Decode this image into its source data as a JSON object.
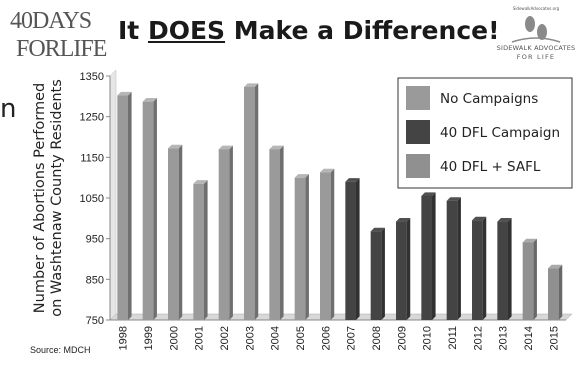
{
  "header": {
    "logo_left_line1": "40DAYS",
    "logo_left_line2": "FORLIFE",
    "title_before": "It ",
    "title_emphasis": "DOES",
    "title_after": " Make a Difference!",
    "logo_right_url": "SidewalkAdvocates.org",
    "logo_right_line1": "SIDEWALK ADVOCATES",
    "logo_right_line2": "FOR LIFE"
  },
  "partial_text": "n",
  "source_note": "Source: MDCH",
  "colors": {
    "no_campaigns": "#9a9a9a",
    "dfl_campaign": "#444444",
    "dfl_safl": "#909090"
  },
  "chart_data": {
    "type": "bar",
    "title": "",
    "xlabel": "",
    "ylabel_line1": "Number of Abortions Performed",
    "ylabel_line2": "on Washtenaw County Residents",
    "ylim": [
      750,
      1350
    ],
    "yticks": [
      750,
      850,
      950,
      1050,
      1150,
      1250,
      1350
    ],
    "grid": false,
    "legend_position": "top-right",
    "categories": [
      "1998",
      "1999",
      "2000",
      "2001",
      "2002",
      "2003",
      "2004",
      "2005",
      "2006",
      "2007",
      "2008",
      "2009",
      "2010",
      "2011",
      "2012",
      "2013",
      "2014",
      "2015"
    ],
    "values": [
      1302,
      1287,
      1172,
      1085,
      1170,
      1323,
      1170,
      1100,
      1113,
      1090,
      968,
      992,
      1055,
      1043,
      995,
      992,
      941,
      877
    ],
    "groups": [
      "none",
      "none",
      "none",
      "none",
      "none",
      "none",
      "none",
      "none",
      "none",
      "dfl",
      "dfl",
      "dfl",
      "dfl",
      "dfl",
      "dfl",
      "dfl",
      "safl",
      "safl"
    ],
    "legend": [
      {
        "key": "none",
        "label": "No Campaigns"
      },
      {
        "key": "dfl",
        "label": "40 DFL Campaign"
      },
      {
        "key": "safl",
        "label": "40 DFL + SAFL"
      }
    ]
  }
}
